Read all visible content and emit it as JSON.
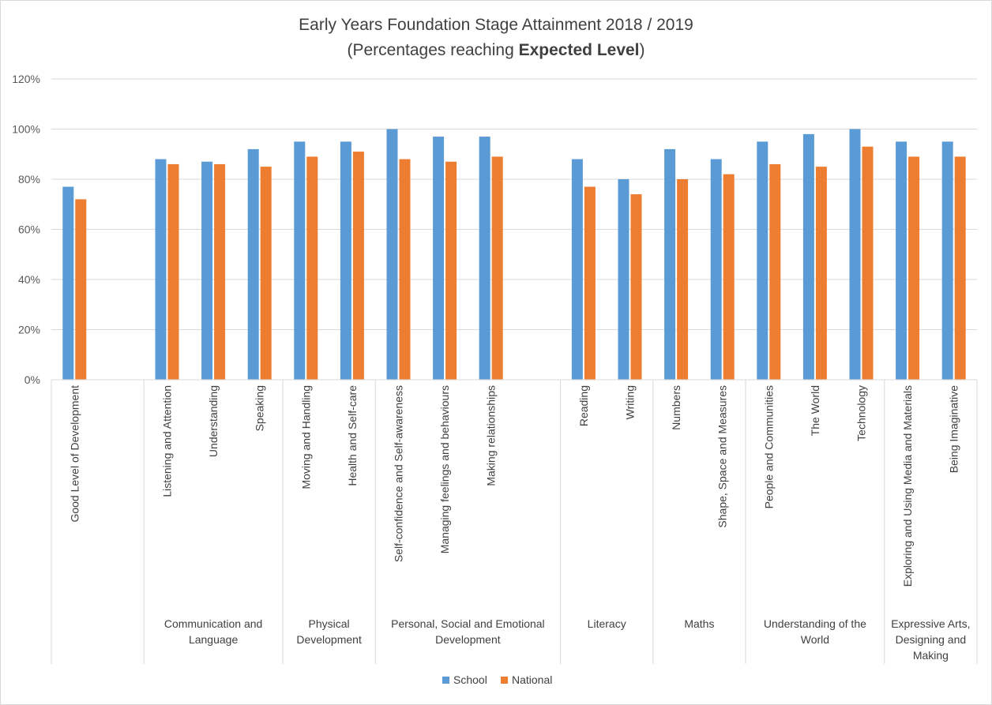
{
  "chart_data": {
    "type": "bar",
    "title": "Early Years Foundation Stage Attainment 2018 / 2019",
    "subtitle_prefix": "(Percentages reaching ",
    "subtitle_bold": "Expected Level",
    "subtitle_suffix": ")",
    "xlabel": "",
    "ylabel": "",
    "ylim": [
      0,
      120
    ],
    "yticks": [
      "0%",
      "20%",
      "40%",
      "60%",
      "80%",
      "100%",
      "120%"
    ],
    "grid": true,
    "legend_position": "bottom",
    "categories": [
      "Good Level of Development",
      "Listening and Attention",
      "Understanding",
      "Speaking",
      "Moving and Handling",
      "Health and Self-care",
      "Self-confidence and Self-awareness",
      "Managing feelings and behaviours",
      "Making relationships",
      "Reading",
      "Writing",
      "Numbers",
      "Shape, Space and Measures",
      "People and Communities",
      "The World",
      "Technology",
      "Exploring and Using Media and Materials",
      "Being Imaginative"
    ],
    "groups": [
      {
        "lines": [
          ""
        ]
      },
      {
        "lines": [
          "Communication and",
          "Language"
        ]
      },
      {
        "lines": [
          "Physical",
          "Development"
        ]
      },
      {
        "lines": [
          "Personal, Social and Emotional",
          "Development"
        ]
      },
      {
        "lines": [
          "Literacy"
        ]
      },
      {
        "lines": [
          "Maths"
        ]
      },
      {
        "lines": [
          "Understanding of the",
          "World"
        ]
      },
      {
        "lines": [
          "Expressive Arts,",
          "Designing and",
          "Making"
        ]
      }
    ],
    "series": [
      {
        "name": "School",
        "color": "#5b9bd5",
        "values": [
          77,
          88,
          87,
          92,
          95,
          95,
          100,
          97,
          97,
          88,
          80,
          92,
          88,
          95,
          98,
          100,
          95,
          95
        ]
      },
      {
        "name": "National",
        "color": "#ed7d31",
        "values": [
          72,
          86,
          86,
          85,
          89,
          91,
          88,
          87,
          89,
          77,
          74,
          80,
          82,
          86,
          85,
          93,
          89,
          89
        ]
      }
    ]
  }
}
